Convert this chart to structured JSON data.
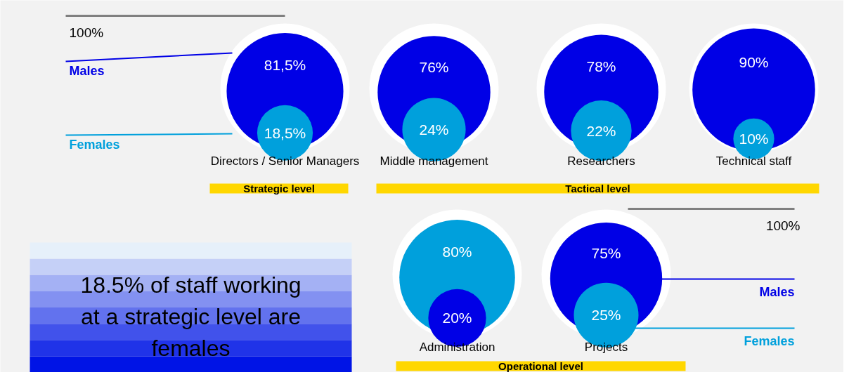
{
  "chart_data": {
    "type": "other",
    "categories": [
      "Directors / Senior Managers",
      "Middle management",
      "Researchers",
      "Technical staff",
      "Administration",
      "Projects"
    ],
    "series": [
      {
        "name": "Males",
        "color": "#0000e6",
        "values": [
          81.5,
          76,
          78,
          90,
          20,
          75
        ],
        "value_labels": [
          "81,5%",
          "76%",
          "78%",
          "90%",
          "20%",
          "75%"
        ]
      },
      {
        "name": "Females",
        "color": "#00a0dc",
        "values": [
          18.5,
          24,
          22,
          10,
          80,
          25
        ],
        "value_labels": [
          "18,5%",
          "24%",
          "22%",
          "10%",
          "80%",
          "25%"
        ]
      }
    ],
    "annotations": [
      "100%",
      "100%",
      "Strategic level",
      "Tactical level",
      "Operational level",
      "18.5% of staff working at a strategic level are females"
    ]
  }
}
